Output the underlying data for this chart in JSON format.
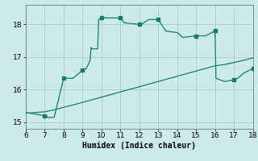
{
  "xlabel": "Humidex (Indice chaleur)",
  "background_color": "#cceae7",
  "grid_color": "#aad4d0",
  "line_color": "#1a7a6e",
  "marker_color": "#1a7a6e",
  "xlim": [
    6,
    18
  ],
  "ylim": [
    14.8,
    18.6
  ],
  "xticks": [
    6,
    7,
    8,
    9,
    10,
    11,
    12,
    13,
    14,
    15,
    16,
    17,
    18
  ],
  "yticks": [
    15,
    16,
    17,
    18
  ],
  "upper_x": [
    6.0,
    6.5,
    7.0,
    7.1,
    7.15,
    7.5,
    8.0,
    8.1,
    8.4,
    8.5,
    9.0,
    9.2,
    9.4,
    9.45,
    9.5,
    9.8,
    9.85,
    10.0,
    10.05,
    11.0,
    11.2,
    12.0,
    12.1,
    12.5,
    13.0,
    13.4,
    14.0,
    14.3,
    15.0,
    15.2,
    15.5,
    16.0,
    16.05,
    16.5,
    17.0,
    17.2,
    17.5,
    18.0
  ],
  "upper_y": [
    15.3,
    15.25,
    15.2,
    15.2,
    15.15,
    15.15,
    16.35,
    16.35,
    16.35,
    16.35,
    16.6,
    16.65,
    16.9,
    17.3,
    17.25,
    17.25,
    18.15,
    18.2,
    18.2,
    18.2,
    18.05,
    18.0,
    18.0,
    18.15,
    18.15,
    17.8,
    17.75,
    17.6,
    17.65,
    17.65,
    17.65,
    17.8,
    16.35,
    16.25,
    16.3,
    16.35,
    16.5,
    16.65
  ],
  "lower_x": [
    6.0,
    6.5,
    7.0,
    7.5,
    8.0,
    8.5,
    9.0,
    9.5,
    10.0,
    10.5,
    11.0,
    11.5,
    12.0,
    12.5,
    13.0,
    13.5,
    14.0,
    14.5,
    15.0,
    15.5,
    16.0,
    16.5,
    17.0,
    17.5,
    18.0
  ],
  "lower_y": [
    15.28,
    15.3,
    15.32,
    15.38,
    15.46,
    15.53,
    15.61,
    15.69,
    15.77,
    15.85,
    15.93,
    16.01,
    16.09,
    16.17,
    16.25,
    16.33,
    16.41,
    16.49,
    16.57,
    16.65,
    16.73,
    16.77,
    16.83,
    16.9,
    16.97
  ],
  "marker_x": [
    7.0,
    8.0,
    9.0,
    10.0,
    11.0,
    12.0,
    13.0,
    15.0,
    16.0,
    17.0,
    18.0
  ],
  "marker_y": [
    15.2,
    16.35,
    16.6,
    18.2,
    18.2,
    18.0,
    18.15,
    17.65,
    17.8,
    16.3,
    16.65
  ],
  "font_size": 7,
  "tick_font_size": 6.5
}
